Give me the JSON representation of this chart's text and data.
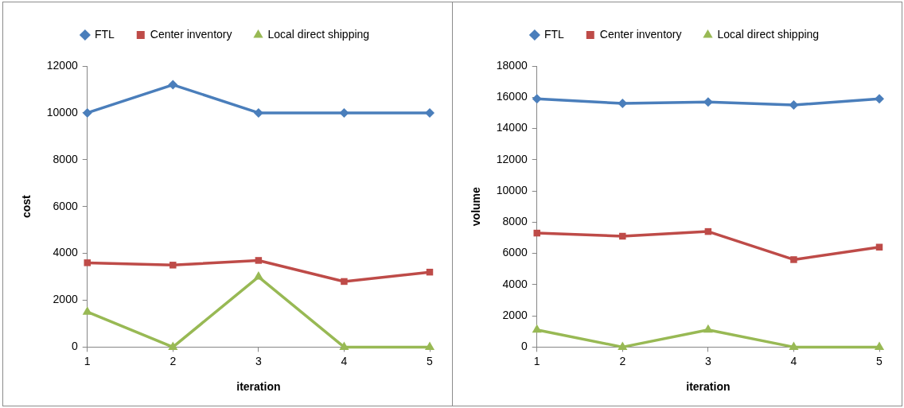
{
  "chart_data": [
    {
      "type": "line",
      "xlabel": "iteration",
      "ylabel": "cost",
      "categories": [
        "1",
        "2",
        "3",
        "4",
        "5"
      ],
      "ylim": [
        0,
        12000
      ],
      "yticks": [
        0,
        2000,
        4000,
        6000,
        8000,
        10000,
        12000
      ],
      "legend": "top",
      "series": [
        {
          "name": "FTL",
          "color": "#4a7ebb",
          "marker": "diamond",
          "values": [
            10000,
            11200,
            10000,
            10000,
            10000
          ]
        },
        {
          "name": "Center inventory",
          "color": "#be4b48",
          "marker": "square",
          "values": [
            3600,
            3500,
            3700,
            2800,
            3200
          ]
        },
        {
          "name": "Local direct shipping",
          "color": "#98b954",
          "marker": "triangle",
          "values": [
            1500,
            0,
            3000,
            0,
            0
          ]
        }
      ]
    },
    {
      "type": "line",
      "xlabel": "iteration",
      "ylabel": "volume",
      "categories": [
        "1",
        "2",
        "3",
        "4",
        "5"
      ],
      "ylim": [
        0,
        18000
      ],
      "yticks": [
        0,
        2000,
        4000,
        6000,
        8000,
        10000,
        12000,
        14000,
        16000,
        18000
      ],
      "legend": "top",
      "series": [
        {
          "name": "FTL",
          "color": "#4a7ebb",
          "marker": "diamond",
          "values": [
            15900,
            15600,
            15700,
            15500,
            15900
          ]
        },
        {
          "name": "Center inventory",
          "color": "#be4b48",
          "marker": "square",
          "values": [
            7300,
            7100,
            7400,
            5600,
            6400
          ]
        },
        {
          "name": "Local direct shipping",
          "color": "#98b954",
          "marker": "triangle",
          "values": [
            1100,
            0,
            1100,
            0,
            0
          ]
        }
      ]
    }
  ]
}
